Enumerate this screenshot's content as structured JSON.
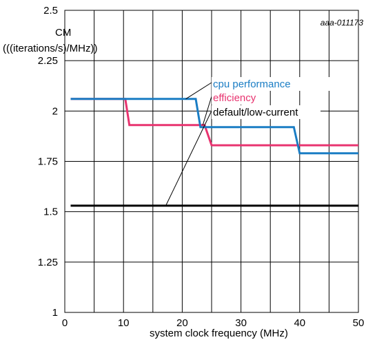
{
  "chart_data": {
    "type": "line",
    "reference_id": "aaa-011173",
    "ylabel_line1": "CM",
    "ylabel_line2": "(((iterations/s)/MHz))",
    "xlabel": "system clock frequency (MHz)",
    "xlim": [
      0,
      50
    ],
    "ylim": [
      1,
      2.5
    ],
    "x_ticks": [
      0,
      10,
      20,
      30,
      40,
      50
    ],
    "y_ticks": [
      1,
      1.25,
      1.5,
      1.75,
      2,
      2.25,
      2.5
    ],
    "x_tick_labels": [
      "0",
      "10",
      "20",
      "30",
      "40",
      "50"
    ],
    "y_tick_labels": [
      "1",
      "1.25",
      "1.5",
      "1.75",
      "2",
      "2.25",
      "2.5"
    ],
    "grid": true,
    "series": [
      {
        "name": "cpu performance",
        "color": "#1a7dc4",
        "x": [
          1,
          22.3,
          23.1,
          39,
          40,
          50
        ],
        "y": [
          2.06,
          2.06,
          1.92,
          1.92,
          1.79,
          1.79
        ]
      },
      {
        "name": "efficiency",
        "color": "#e8336f",
        "x": [
          1,
          10.3,
          11,
          23.8,
          25,
          50
        ],
        "y": [
          2.06,
          2.06,
          1.93,
          1.93,
          1.83,
          1.83
        ]
      },
      {
        "name": "default/low-current",
        "color": "#000000",
        "x": [
          1,
          50
        ],
        "y": [
          1.53,
          1.53
        ]
      }
    ]
  }
}
